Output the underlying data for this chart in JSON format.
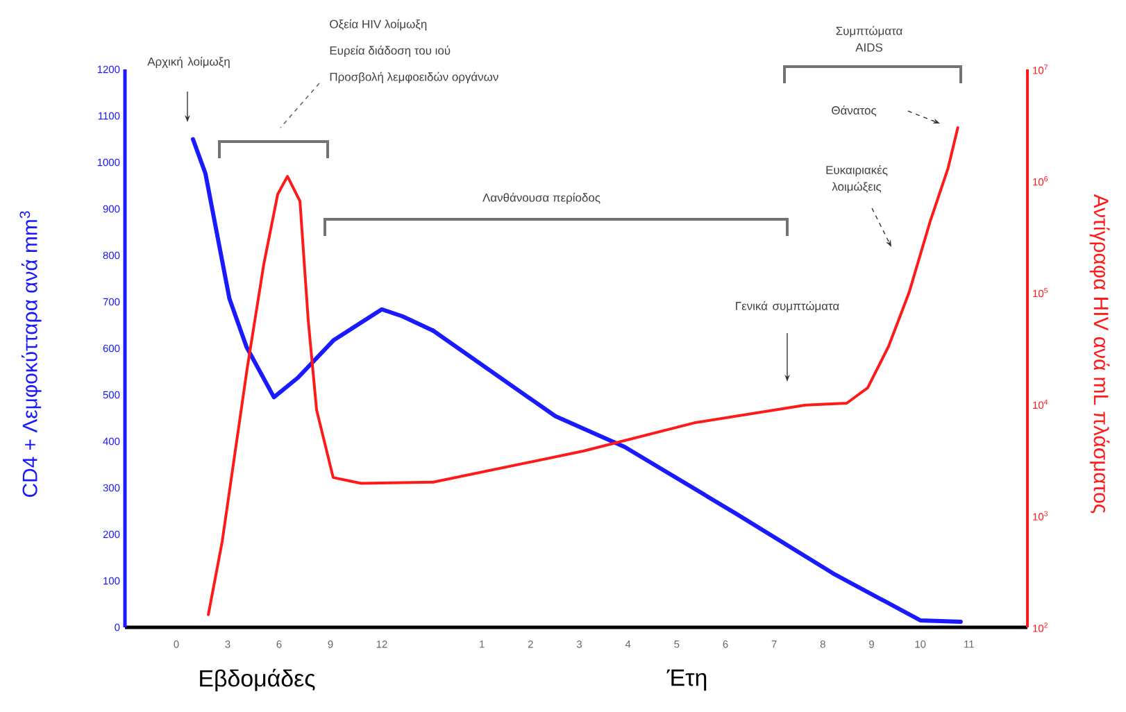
{
  "chart_data": [
    {
      "type": "line",
      "xlabel": "Εβδομάδες",
      "ylabel": "CD4 + Λεμφοκύτταρα ανά mm$^{3}$",
      "xlim": [
        -3,
        15
      ],
      "xticks": [
        0,
        3,
        6,
        9,
        12
      ],
      "ylim": [
        0,
        1200
      ],
      "yticks": [
        0,
        100,
        200,
        300,
        400,
        500,
        600,
        700,
        800,
        900,
        1000,
        1100,
        1200
      ],
      "y2lim": [
        100,
        10000000
      ],
      "log": "y2",
      "marker": "none",
      "line_style": "solid",
      "series": [
        {
          "color": "#1a1aff",
          "axis": "y",
          "x": [
            0.97,
            1.7,
            3.1,
            4.1,
            5.7,
            7.1,
            9.2,
            12.0,
            13.2,
            15
          ],
          "values": [
            1050,
            976,
            707,
            603,
            495,
            537,
            618,
            684,
            669,
            638
          ]
        },
        {
          "color": "#ff1a1a",
          "axis": "y2",
          "x": [
            1.87,
            2.68,
            4.14,
            5.11,
            5.92,
            6.49,
            7.22,
            7.7,
            8.19,
            9.16,
            10.8,
            15
          ],
          "values": [
            130,
            590,
            21000,
            180000,
            760000,
            1100000,
            660000,
            57000,
            8900,
            2200,
            1950,
            2000
          ]
        }
      ],
      "annotations": [
        "Αρχική λοίμωξη",
        "Οξεία HIV λοίμωξη",
        "Ευρεία διάδοση του ιού",
        "Προσβολή λεμφοειδών οργάνων"
      ]
    },
    {
      "type": "line",
      "xlabel": "Έτη",
      "y2label": "Αντίγραφα HIV ανά mL πλάσματος",
      "xlim": [
        0,
        12.2
      ],
      "xticks": [
        1,
        2,
        3,
        4,
        5,
        6,
        7,
        8,
        9,
        10,
        11
      ],
      "ylim": [
        0,
        1200
      ],
      "y2lim": [
        100,
        10000000
      ],
      "y2ticks": [
        {
          "value": 100,
          "label": "10$^{2}$"
        },
        {
          "value": 1000,
          "label": "10$^{3}$"
        },
        {
          "value": 10000,
          "label": "10$^{4}$"
        },
        {
          "value": 100000,
          "label": "10$^{5}$"
        },
        {
          "value": 1000000,
          "label": "10$^{6}$"
        },
        {
          "value": 10000000,
          "label": "10$^{7}$"
        }
      ],
      "log": "y2",
      "marker": "none",
      "line_style": "solid",
      "series": [
        {
          "color": "#1a1aff",
          "axis": "y",
          "x": [
            0,
            2.51,
            3.93,
            6.21,
            8.21,
            10.0,
            10.83
          ],
          "values": [
            638,
            454,
            388,
            245,
            116,
            15,
            12
          ]
        },
        {
          "color": "#ff1a1a",
          "axis": "y2",
          "x": [
            0,
            3.08,
            5.36,
            7.64,
            8.49,
            8.92,
            9.35,
            9.77,
            10.2,
            10.57,
            10.77
          ],
          "values": [
            2000,
            3800,
            6800,
            9800,
            10200,
            14000,
            33000,
            100000,
            430000,
            1300000,
            3000000
          ]
        }
      ],
      "annotations": [
        "Λανθάνουσα περίοδος",
        "Συμπτώματα AIDS",
        "Θάνατος",
        "Ευκαιριακές λοιμώξεις",
        "Γενικά συμπτώματα"
      ]
    }
  ]
}
